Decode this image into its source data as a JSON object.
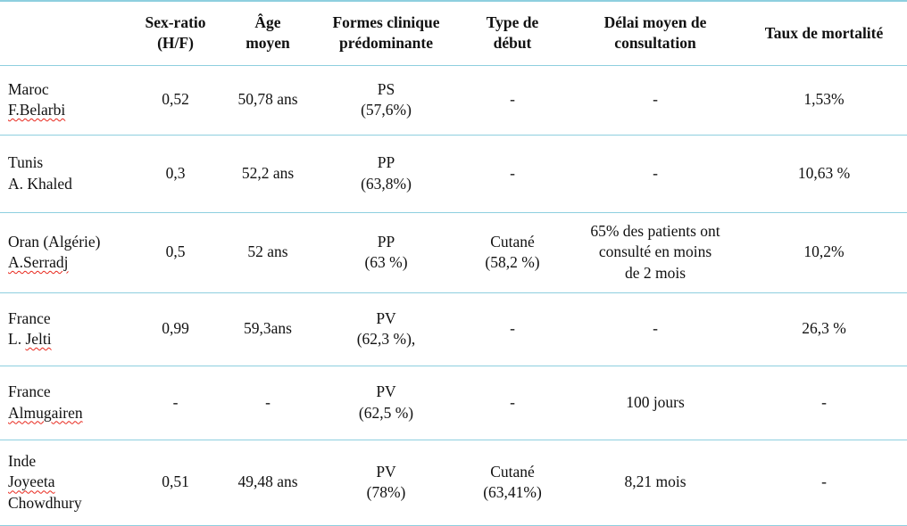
{
  "table": {
    "border_color": "#8ecfdf",
    "misspell_underline_color": "#e8271c",
    "headers": [
      "",
      "Sex-ratio\n(H/F)",
      "Âge\nmoyen",
      "Formes clinique\nprédominante",
      "Type de\ndébut",
      "Délai moyen de\nconsultation",
      "Taux de mortalité"
    ],
    "rows": [
      {
        "name_lines": [
          [
            {
              "text": "Maroc",
              "misspelled": false
            }
          ],
          [
            {
              "text": "F.Belarbi",
              "misspelled": true
            }
          ]
        ],
        "cells": [
          "0,52",
          "50,78 ans",
          "PS\n(57,6%)",
          "-",
          "-",
          "1,53%"
        ]
      },
      {
        "name_lines": [
          [
            {
              "text": "Tunis",
              "misspelled": false
            }
          ],
          [
            {
              "text": "A. Khaled",
              "misspelled": false
            }
          ]
        ],
        "cells": [
          "0,3",
          "52,2 ans",
          "PP\n(63,8%)",
          "-",
          "-",
          "10,63 %"
        ]
      },
      {
        "name_lines": [
          [
            {
              "text": "Oran (Algérie)",
              "misspelled": false
            }
          ],
          [
            {
              "text": "A.Serradj",
              "misspelled": true
            }
          ]
        ],
        "cells": [
          "0,5",
          "52 ans",
          "PP\n(63 %)",
          "Cutané\n(58,2 %)",
          "65% des patients ont\nconsulté en moins\nde 2 mois",
          "10,2%"
        ]
      },
      {
        "name_lines": [
          [
            {
              "text": "France",
              "misspelled": false
            }
          ],
          [
            {
              "text": "L. ",
              "misspelled": false
            },
            {
              "text": "Jelti",
              "misspelled": true
            }
          ]
        ],
        "cells": [
          "0,99",
          "59,3ans",
          "PV\n(62,3 %),",
          "-",
          "-",
          "26,3 %"
        ]
      },
      {
        "name_lines": [
          [
            {
              "text": "France",
              "misspelled": false
            }
          ],
          [
            {
              "text": "Almugairen",
              "misspelled": true
            }
          ]
        ],
        "cells": [
          "-",
          "-",
          "PV\n(62,5 %)",
          "-",
          "100 jours",
          "-"
        ]
      },
      {
        "name_lines": [
          [
            {
              "text": "Inde",
              "misspelled": false
            }
          ],
          [
            {
              "text": "Joyeeta",
              "misspelled": true
            }
          ],
          [
            {
              "text": "Chowdhury",
              "misspelled": false
            }
          ]
        ],
        "cells": [
          "0,51",
          "49,48 ans",
          "PV\n(78%)",
          "Cutané\n(63,41%)",
          "8,21 mois",
          "-"
        ]
      }
    ]
  }
}
